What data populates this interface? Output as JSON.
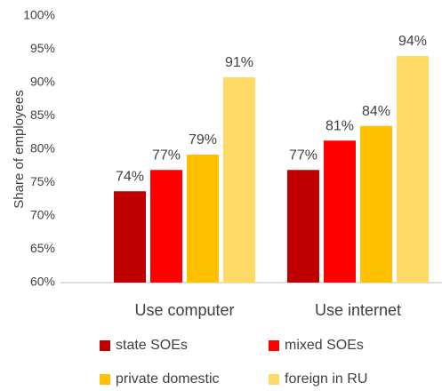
{
  "chart_data": {
    "type": "bar",
    "y_label": "Share of employees",
    "categories": [
      "Use computer",
      "Use internet"
    ],
    "series": [
      {
        "name": "state SOEs",
        "color": "#c00000",
        "values": [
          73.7,
          76.9
        ],
        "value_labels": [
          "74%",
          "77%"
        ]
      },
      {
        "name": "mixed SOEs",
        "color": "#ff0000",
        "values": [
          76.9,
          81.3
        ],
        "value_labels": [
          "77%",
          "81%"
        ]
      },
      {
        "name": "private domestic",
        "color": "#ffc000",
        "values": [
          79.2,
          83.5
        ],
        "value_labels": [
          "79%",
          "84%"
        ]
      },
      {
        "name": "foreign in RU",
        "color": "#ffd966",
        "values": [
          90.8,
          94.0
        ],
        "value_labels": [
          "91%",
          "94%"
        ]
      }
    ],
    "ylim": [
      60,
      100
    ],
    "yticks": [
      {
        "value": 60,
        "label": "60%"
      },
      {
        "value": 65,
        "label": "65%"
      },
      {
        "value": 70,
        "label": "70%"
      },
      {
        "value": 75,
        "label": "75%"
      },
      {
        "value": 80,
        "label": "80%"
      },
      {
        "value": 85,
        "label": "85%"
      },
      {
        "value": 90,
        "label": "90%"
      },
      {
        "value": 95,
        "label": "95%"
      },
      {
        "value": 100,
        "label": "100%"
      }
    ],
    "grid": false,
    "legend": "bottom"
  }
}
